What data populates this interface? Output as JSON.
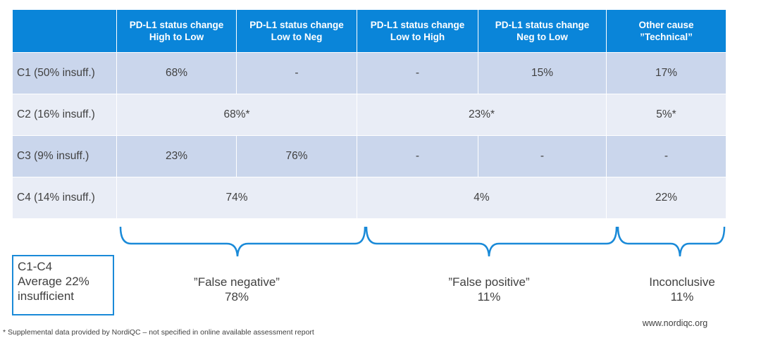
{
  "table": {
    "header": [
      "",
      "PD-L1 status change\nHigh to Low",
      "PD-L1 status change\nLow to Neg",
      "PD-L1 status change\nLow to High",
      "PD-L1 status change\nNeg to Low",
      "Other cause\n”Technical”"
    ],
    "rows": [
      {
        "label": "C1 (50% insuff.)",
        "c1": "68%",
        "c2": "-",
        "c3": "-",
        "c4": "15%",
        "c5": "17%"
      },
      {
        "label": "C2 (16% insuff.)",
        "fn": "68%*",
        "fp": "23%*",
        "other": "5%*"
      },
      {
        "label": "C3 (9% insuff.)",
        "c1": "23%",
        "c2": "76%",
        "c3": "-",
        "c4": "-",
        "c5": "-"
      },
      {
        "label": "C4 (14% insuff.)",
        "fn": "74%",
        "fp": "4%",
        "other": "22%"
      }
    ]
  },
  "summary": {
    "average_box": [
      "C1-C4",
      "Average 22%",
      "insufficient"
    ],
    "false_negative": {
      "label": "”False negative”",
      "value": "78%"
    },
    "false_positive": {
      "label": "”False positive”",
      "value": "11%"
    },
    "inconclusive": {
      "label": "Inconclusive",
      "value": "11%"
    }
  },
  "colors": {
    "header_bg": "#0a85d9",
    "row_dark": "#cad6ec",
    "row_light": "#e9edf6",
    "brace": "#1a8ad8"
  },
  "website": "www.nordiqc.org",
  "footnote": "* Supplemental data provided by NordiQC – not specified in online available assessment report"
}
